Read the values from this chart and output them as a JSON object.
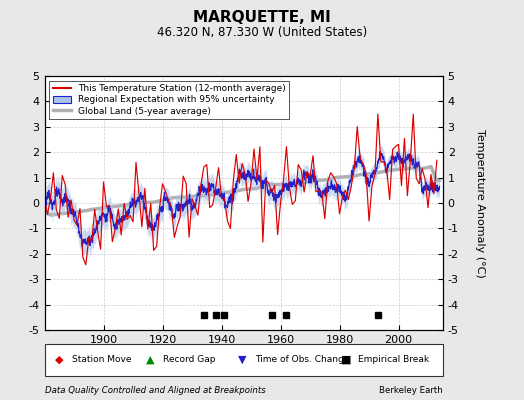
{
  "title": "MARQUETTE, MI",
  "subtitle": "46.320 N, 87.330 W (United States)",
  "ylabel": "Temperature Anomaly (°C)",
  "footer_left": "Data Quality Controlled and Aligned at Breakpoints",
  "footer_right": "Berkeley Earth",
  "xlim": [
    1880,
    2015
  ],
  "ylim": [
    -5,
    5
  ],
  "yticks": [
    -5,
    -4,
    -3,
    -2,
    -1,
    0,
    1,
    2,
    3,
    4,
    5
  ],
  "xticks": [
    1900,
    1920,
    1940,
    1960,
    1980,
    2000
  ],
  "background_color": "#e8e8e8",
  "plot_bg_color": "#ffffff",
  "grid_color": "#cccccc",
  "empirical_breaks": [
    1934,
    1938,
    1941,
    1957,
    1962,
    1993
  ],
  "station_moves": [],
  "record_gaps": [],
  "tobs_changes": [],
  "seed": 42
}
